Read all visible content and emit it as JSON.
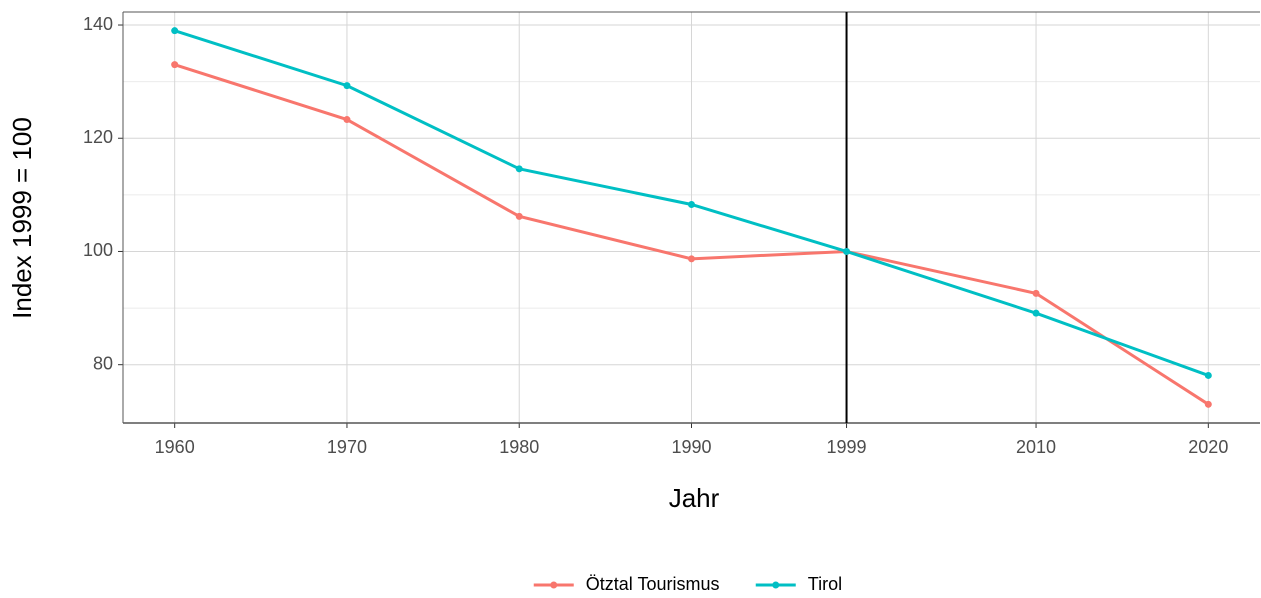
{
  "chart_data": {
    "type": "line",
    "xlabel": "Jahr",
    "ylabel": "Index 1999 = 100",
    "x": [
      1960,
      1970,
      1980,
      1990,
      1999,
      2010,
      2020
    ],
    "series": [
      {
        "name": "Ötztal Tourismus",
        "color": "#F8766D",
        "values": [
          133,
          123.3,
          106.2,
          98.7,
          100,
          92.6,
          73
        ]
      },
      {
        "name": "Tirol",
        "color": "#00BFC4",
        "values": [
          139,
          129.3,
          114.6,
          108.3,
          100,
          89.1,
          78.1
        ]
      }
    ],
    "xlim": [
      1957,
      2023
    ],
    "xticks": [
      1960,
      1970,
      1980,
      1990,
      1999,
      2010,
      2020
    ],
    "ylim": [
      69.7,
      142.3
    ],
    "yticks": [
      80,
      100,
      120,
      140
    ],
    "yminor": [
      90,
      110,
      130
    ],
    "vline": 1999,
    "grid": true,
    "legend": "bottom"
  }
}
